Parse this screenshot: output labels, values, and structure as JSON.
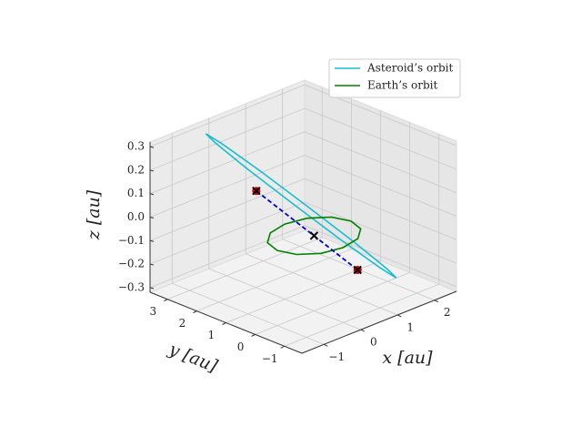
{
  "chart_data": {
    "type": "line3d",
    "xlabel": "x [au]",
    "ylabel": "y [au]",
    "zlabel": "z [au]",
    "xlim": [
      -1.6,
      2.6
    ],
    "ylim": [
      -1.6,
      3.6
    ],
    "zlim": [
      -0.32,
      0.32
    ],
    "xticks": [
      {
        "value": -1,
        "label": "−1"
      },
      0,
      1,
      2
    ],
    "yticks": [
      {
        "value": -1,
        "label": "−1"
      },
      0,
      1,
      2,
      3
    ],
    "zticks": [
      {
        "value": -0.3,
        "label": "−0.3"
      },
      {
        "value": -0.2,
        "label": "−0.2"
      },
      {
        "value": -0.1,
        "label": "−0.1"
      },
      {
        "value": 0,
        "label": "0.0"
      },
      0.1,
      0.2,
      0.3
    ],
    "grid": true,
    "legend": "upper right",
    "series": [
      {
        "name": "Asteroid’s orbit",
        "color": "#17becf",
        "x": [
          -0.4,
          -0.12,
          0.36,
          0.9,
          1.36,
          1.62,
          1.6,
          1.32,
          0.84,
          0.3,
          -0.16,
          -0.42,
          -0.4
        ],
        "y": [
          3.2,
          3.01,
          2.33,
          1.35,
          0.33,
          -0.46,
          -0.8,
          -0.61,
          0.07,
          1.05,
          2.07,
          2.86,
          3.2
        ],
        "z": [
          0.3,
          0.25,
          0.14,
          0.0,
          -0.13,
          -0.22,
          -0.24,
          -0.19,
          -0.08,
          0.06,
          0.19,
          0.28,
          0.3
        ]
      },
      {
        "name": "Earth’s orbit",
        "color": "#008000",
        "x": [
          1,
          0.87,
          0.5,
          0,
          -0.5,
          -0.87,
          -1,
          -0.87,
          -0.5,
          0,
          0.5,
          0.87,
          1
        ],
        "y": [
          0,
          0.5,
          0.87,
          1,
          0.87,
          0.5,
          0,
          -0.5,
          -0.87,
          -1,
          -0.87,
          -0.5,
          0
        ],
        "z": [
          0,
          0,
          0,
          0,
          0,
          0,
          0,
          0,
          0,
          0,
          0,
          0,
          0
        ]
      }
    ],
    "segment": {
      "color": "#0000cc",
      "marker_color": "#000000",
      "end_color": "#cc0000",
      "x": [
        -0.3,
        0,
        0.23
      ],
      "y": [
        1.6,
        0,
        -1.2
      ],
      "z": [
        0.13,
        0,
        -0.1
      ]
    }
  }
}
